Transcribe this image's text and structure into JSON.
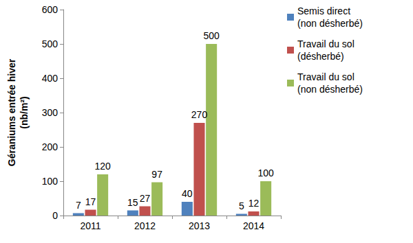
{
  "chart_data": {
    "type": "bar",
    "y_label": "Géraniums entrée hiver\n(nb/m²)",
    "categories": [
      "2011",
      "2012",
      "2013",
      "2014"
    ],
    "series": [
      {
        "name": "Semis direct (non désherbé)",
        "color": "#4f81bd",
        "values": [
          7,
          15,
          40,
          5
        ]
      },
      {
        "name": "Travail du sol (désherbé)",
        "color": "#c0504d",
        "values": [
          17,
          27,
          270,
          12
        ]
      },
      {
        "name": "Travail du sol (non désherbé)",
        "color": "#9bbb59",
        "values": [
          120,
          97,
          500,
          100
        ]
      }
    ],
    "ylim": [
      0,
      600
    ],
    "yticks": [
      0,
      100,
      200,
      300,
      400,
      500,
      600
    ],
    "grid": false,
    "legend": "right",
    "data_labels": true
  }
}
